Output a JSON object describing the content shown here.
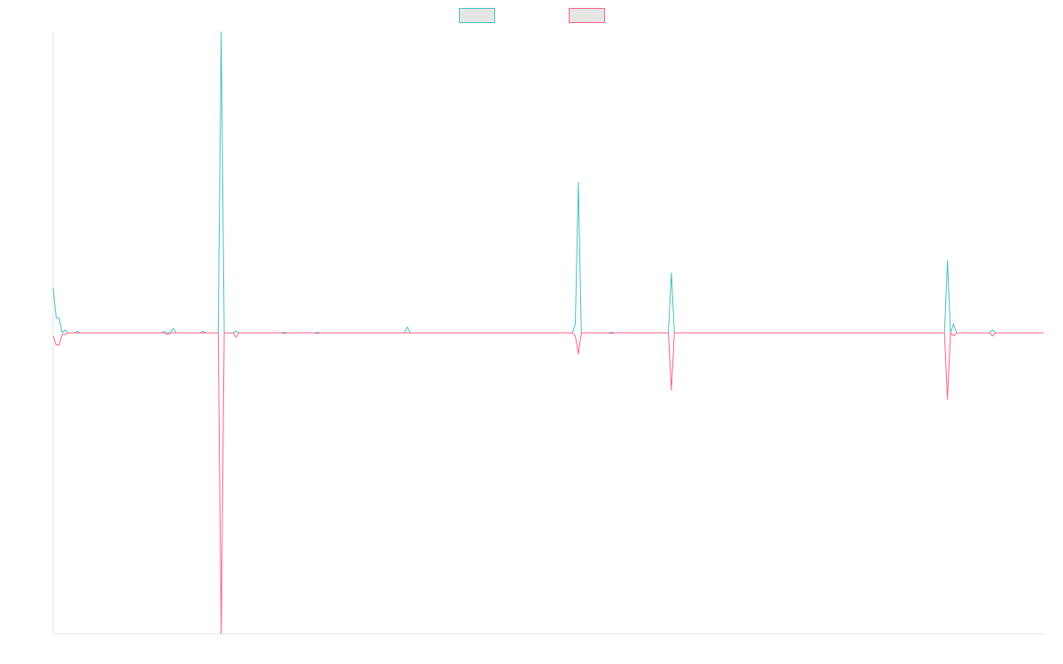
{
  "chart_data": {
    "type": "line",
    "legend_position": "top-center",
    "grid": false,
    "x": [
      0,
      1,
      2,
      3,
      4,
      5,
      6,
      7,
      8,
      9,
      10,
      11,
      12,
      13,
      14,
      15,
      16,
      17,
      18,
      19,
      20,
      21,
      22,
      23,
      24,
      25,
      26,
      27,
      28,
      29,
      30,
      31,
      32,
      33,
      34,
      35,
      36,
      37,
      38,
      39,
      40,
      41,
      42,
      43,
      44,
      45,
      46,
      47,
      48,
      49,
      50,
      51,
      52,
      53,
      54,
      55,
      56,
      57,
      58,
      59,
      60,
      61,
      62,
      63,
      64,
      65,
      66,
      67,
      68,
      69,
      70,
      71,
      72,
      73,
      74,
      75,
      76,
      77,
      78,
      79,
      80,
      81,
      82,
      83,
      84,
      85,
      86,
      87,
      88,
      89,
      90,
      91,
      92,
      93,
      94,
      95,
      96,
      97,
      98,
      99,
      100,
      101,
      102,
      103,
      104,
      105,
      106,
      107,
      108,
      109,
      110,
      111,
      112,
      113,
      114,
      115,
      116,
      117,
      118,
      119,
      120,
      121,
      122,
      123,
      124,
      125,
      126,
      127,
      128,
      129,
      130,
      131,
      132,
      133,
      134,
      135,
      136,
      137,
      138,
      139,
      140,
      141,
      142,
      143,
      144,
      145,
      146,
      147,
      148,
      149,
      150,
      151,
      152,
      153,
      154,
      155,
      156,
      157,
      158,
      159,
      160,
      161,
      162,
      163,
      164,
      165,
      166,
      167,
      168,
      169,
      170,
      171,
      172,
      173,
      174,
      175,
      176,
      177,
      178,
      179,
      180,
      181,
      182,
      183,
      184,
      185,
      186,
      187,
      188,
      189,
      190,
      191,
      192,
      193,
      194,
      195,
      196,
      197,
      198,
      199,
      200,
      201,
      202,
      203,
      204,
      205,
      206,
      207,
      208,
      209,
      210,
      211,
      212,
      213,
      214,
      215,
      216,
      217,
      218,
      219,
      220,
      221,
      222,
      223,
      224,
      225,
      226,
      227,
      228,
      229,
      230,
      231,
      232,
      233,
      234,
      235,
      236,
      237,
      238,
      239,
      240,
      241,
      242,
      243,
      244,
      245,
      246,
      247,
      248,
      249,
      250,
      251,
      252,
      253,
      254,
      255,
      256,
      257,
      258,
      259,
      260,
      261,
      262,
      263,
      264,
      265,
      266,
      267,
      268,
      269,
      270,
      271,
      272,
      273,
      274,
      275,
      276,
      277,
      278,
      279,
      280,
      281,
      282,
      283,
      284,
      285,
      286,
      287,
      288,
      289,
      290,
      291,
      292,
      293,
      294,
      295,
      296,
      297,
      298,
      299,
      300,
      301,
      302,
      303,
      304,
      305,
      306,
      307,
      308,
      309,
      310,
      311,
      312,
      313,
      314,
      315,
      316,
      317,
      318,
      319,
      320,
      321,
      322,
      323,
      324,
      325,
      326,
      327,
      328,
      329,
      330
    ],
    "ylim": [
      -100,
      100
    ],
    "series": [
      {
        "color": "#4bc0c0",
        "legend_fill": "#e6e6e6",
        "peaks": [
          [
            0,
            15
          ],
          [
            1,
            5
          ],
          [
            2,
            5
          ],
          [
            3,
            0
          ],
          [
            4,
            1
          ],
          [
            5,
            0
          ],
          [
            6,
            0
          ],
          [
            7,
            0
          ],
          [
            8,
            0.5
          ],
          [
            9,
            0
          ],
          [
            37,
            0.5
          ],
          [
            38,
            0
          ],
          [
            40,
            1.5
          ],
          [
            41,
            0
          ],
          [
            50,
            0.5
          ],
          [
            51,
            0
          ],
          [
            53,
            0
          ],
          [
            56,
            100
          ],
          [
            57,
            0
          ],
          [
            60,
            0
          ],
          [
            61,
            0.5
          ],
          [
            62,
            0
          ],
          [
            77,
            0.2
          ],
          [
            78,
            0
          ],
          [
            88,
            0.2
          ],
          [
            89,
            0
          ],
          [
            118,
            2
          ],
          [
            119,
            0
          ],
          [
            173,
            0
          ],
          [
            174,
            3
          ],
          [
            175,
            50
          ],
          [
            176,
            0
          ],
          [
            177,
            0
          ],
          [
            178,
            0
          ],
          [
            186,
            0.2
          ],
          [
            187,
            0
          ],
          [
            205,
            0
          ],
          [
            206,
            20
          ],
          [
            207,
            0
          ],
          [
            297,
            0
          ],
          [
            298,
            24
          ],
          [
            299,
            0
          ],
          [
            300,
            3
          ],
          [
            301,
            0
          ],
          [
            312,
            0
          ],
          [
            313,
            1
          ],
          [
            314,
            0
          ],
          [
            330,
            0
          ]
        ]
      },
      {
        "color": "#ff6384",
        "legend_fill": "#e6e6e6",
        "peaks": [
          [
            0,
            -1
          ],
          [
            1,
            -4
          ],
          [
            2,
            -4
          ],
          [
            3,
            -0.5
          ],
          [
            4,
            -0.5
          ],
          [
            5,
            0
          ],
          [
            9,
            0
          ],
          [
            37,
            0
          ],
          [
            38,
            -0.5
          ],
          [
            39,
            0
          ],
          [
            56,
            -100
          ],
          [
            57,
            0
          ],
          [
            60,
            0
          ],
          [
            61,
            -1.5
          ],
          [
            62,
            0
          ],
          [
            77,
            -0.2
          ],
          [
            78,
            0
          ],
          [
            88,
            -0.2
          ],
          [
            89,
            0
          ],
          [
            173,
            0
          ],
          [
            174,
            -1
          ],
          [
            175,
            -7
          ],
          [
            176,
            0
          ],
          [
            177,
            0
          ],
          [
            186,
            -0.2
          ],
          [
            187,
            0
          ],
          [
            205,
            0
          ],
          [
            206,
            -19
          ],
          [
            207,
            0
          ],
          [
            297,
            0
          ],
          [
            298,
            -22
          ],
          [
            299,
            0
          ],
          [
            300,
            -1
          ],
          [
            301,
            0
          ],
          [
            312,
            0
          ],
          [
            313,
            -1
          ],
          [
            314,
            0
          ],
          [
            330,
            0
          ]
        ]
      }
    ]
  }
}
